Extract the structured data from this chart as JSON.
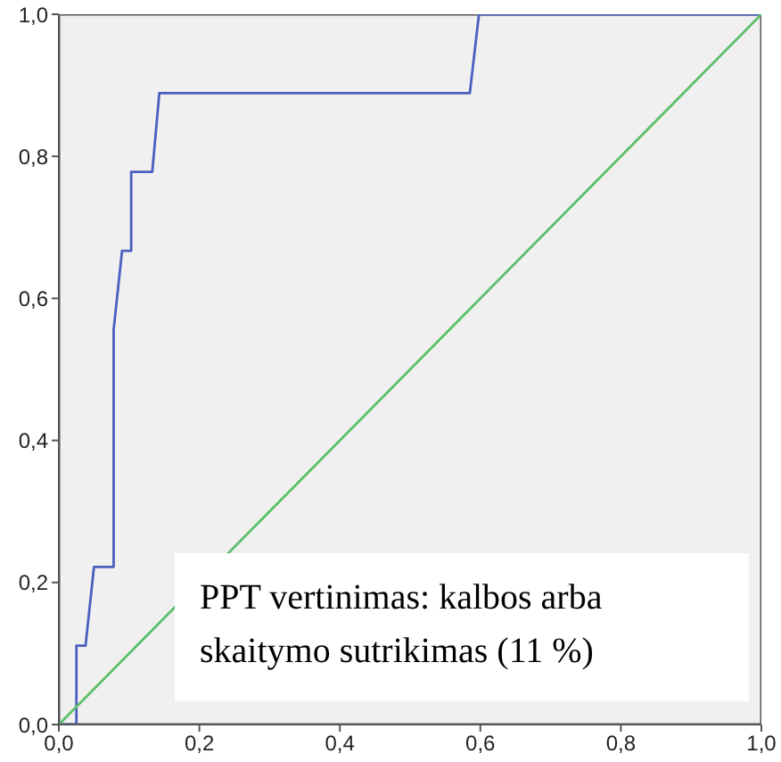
{
  "chart_data": {
    "type": "line",
    "annotations": [
      "PPT vertinimas: kalbos arba skaitymo sutrikimas (11 %)"
    ],
    "series": [
      {
        "color": "#4a5fbf",
        "x": [
          0,
          0.025,
          0.025,
          0.038,
          0.05,
          0.078,
          0.078,
          0.09,
          0.103,
          0.103,
          0.133,
          0.143,
          0.585,
          0.598,
          1
        ],
        "values": [
          0,
          0,
          0.111,
          0.111,
          0.222,
          0.222,
          0.556,
          0.667,
          0.667,
          0.778,
          0.778,
          0.889,
          0.889,
          1,
          1
        ]
      },
      {
        "color": "#5cbf6a",
        "x": [
          0,
          1
        ],
        "values": [
          0,
          1
        ]
      }
    ],
    "xlim": [
      0,
      1
    ],
    "ylim": [
      0,
      1
    ],
    "xticks": [
      {
        "value": 0,
        "label": "0,0"
      },
      {
        "value": 0.2,
        "label": "0,2"
      },
      {
        "value": 0.4,
        "label": "0,4"
      },
      {
        "value": 0.6,
        "label": "0,6"
      },
      {
        "value": 0.8,
        "label": "0,8"
      },
      {
        "value": 1,
        "label": "1,0"
      }
    ],
    "yticks": [
      {
        "value": 0,
        "label": "0,0"
      },
      {
        "value": 0.2,
        "label": "0,2"
      },
      {
        "value": 0.4,
        "label": "0,4"
      },
      {
        "value": 0.6,
        "label": "0,6"
      },
      {
        "value": 0.8,
        "label": "0,8"
      },
      {
        "value": 1,
        "label": "1,0"
      }
    ],
    "marker": "none",
    "line_style": "solid",
    "grid": false
  }
}
